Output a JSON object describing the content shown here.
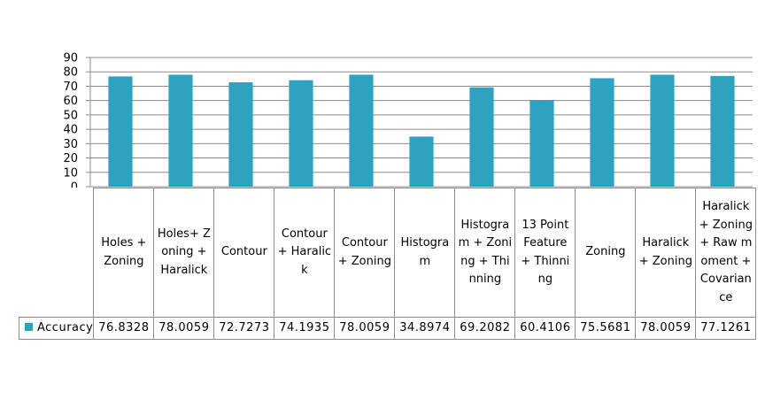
{
  "chart_data": {
    "type": "bar",
    "categories": [
      "Holes + Zoning",
      "Holes+ Zoning + Haralick",
      "Contour",
      "Contour + Haralick",
      "Contour + Zoning",
      "Histogram",
      "Histogram + Zoning + Thinning",
      "13 Point Feature + Thinning",
      "Zoning",
      "Haralick + Zoning",
      "Haralick + Zoning + Raw moment + Covariance"
    ],
    "series": [
      {
        "name": "Accuracy",
        "values": [
          76.8328,
          78.0059,
          72.7273,
          74.1935,
          78.0059,
          34.8974,
          69.2082,
          60.4106,
          75.5681,
          78.0059,
          77.1261
        ],
        "display": [
          "76.8328",
          "78.0059",
          "72.7273",
          "74.1935",
          "78.0059",
          "34.8974",
          "69.2082",
          "60.4106",
          "75.5681",
          "78.0059",
          "77.1261"
        ]
      }
    ],
    "ylim": [
      0,
      90
    ],
    "yticks": [
      "0",
      "10",
      "20",
      "30",
      "40",
      "50",
      "60",
      "70",
      "80",
      "90"
    ],
    "grid": true,
    "legend": "data-table",
    "bar_color": "#2ea3c1"
  }
}
